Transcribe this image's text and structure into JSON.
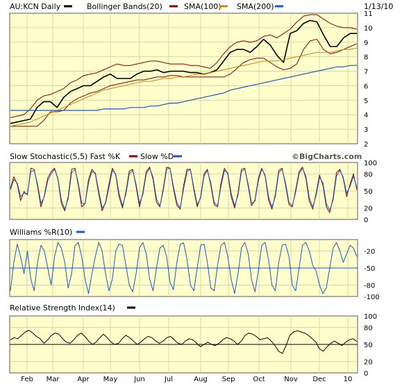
{
  "header": {
    "symbol_label": "AU:KCN Daily",
    "bollinger_label": "Bollinger Bands(20)",
    "sma100_label": "SMA(100)",
    "sma200_label": "SMA(200)",
    "date": "1/13/10"
  },
  "watermark": "©BigCharts.com",
  "colors": {
    "background": "#ffffcc",
    "panel_border": "#5a5a5a",
    "grid": "#d4d4a8",
    "price": "#000000",
    "bollinger": "#8b0000",
    "sma100": "#cc8800",
    "sma200": "#1a56c9",
    "stoch_fast": "#8b0000",
    "stoch_slow": "#1a56c9",
    "williams": "#1a56c9",
    "rsi": "#000000"
  },
  "chart_data": [
    {
      "type": "line",
      "name": "price",
      "title": "AU:KCN Daily",
      "ylim": [
        2,
        11
      ],
      "yticks": [
        2,
        3,
        4,
        5,
        6,
        7,
        8,
        9,
        10,
        11
      ],
      "months": [
        "Feb",
        "Mar",
        "Apr",
        "May",
        "Jun",
        "Jul",
        "Aug",
        "Sep",
        "Oct",
        "Nov",
        "Dec",
        "10"
      ],
      "series": [
        {
          "name": "AU:KCN Daily",
          "values": [
            3.4,
            3.5,
            3.6,
            3.7,
            4.5,
            4.9,
            4.9,
            4.5,
            5.2,
            5.6,
            5.8,
            6.0,
            6.0,
            6.3,
            6.6,
            6.8,
            6.5,
            6.5,
            6.5,
            6.8,
            7.0,
            7.0,
            7.1,
            6.9,
            7.0,
            7.0,
            7.0,
            6.9,
            6.9,
            6.8,
            6.9,
            7.1,
            7.7,
            8.3,
            8.5,
            8.5,
            8.3,
            8.7,
            9.2,
            8.8,
            8.1,
            7.6,
            9.6,
            9.8,
            10.3,
            10.5,
            10.4,
            9.5,
            8.7,
            8.7,
            9.3,
            9.6,
            9.6
          ]
        },
        {
          "name": "Bollinger upper",
          "values": [
            3.8,
            3.9,
            4.0,
            4.4,
            5.0,
            5.3,
            5.4,
            5.6,
            5.8,
            6.2,
            6.4,
            6.7,
            6.8,
            6.9,
            7.1,
            7.3,
            7.5,
            7.4,
            7.4,
            7.5,
            7.6,
            7.7,
            7.7,
            7.6,
            7.5,
            7.5,
            7.5,
            7.4,
            7.4,
            7.3,
            7.2,
            7.6,
            8.2,
            8.7,
            9.0,
            9.1,
            9.0,
            9.1,
            9.4,
            9.5,
            9.3,
            9.6,
            9.9,
            10.4,
            10.8,
            10.9,
            10.9,
            10.6,
            10.3,
            10.1,
            10.0,
            10.0,
            9.9
          ]
        },
        {
          "name": "Bollinger lower",
          "values": [
            3.2,
            3.2,
            3.2,
            3.2,
            3.2,
            3.6,
            4.2,
            4.2,
            4.3,
            4.8,
            5.1,
            5.3,
            5.5,
            5.6,
            5.8,
            6.0,
            6.1,
            6.2,
            6.3,
            6.4,
            6.4,
            6.5,
            6.6,
            6.6,
            6.7,
            6.7,
            6.6,
            6.6,
            6.6,
            6.6,
            6.6,
            6.6,
            6.6,
            6.8,
            7.2,
            7.6,
            7.8,
            7.9,
            7.9,
            7.6,
            7.3,
            7.1,
            7.2,
            7.5,
            8.5,
            9.1,
            9.2,
            8.5,
            8.2,
            8.3,
            8.5,
            8.7,
            8.9
          ]
        },
        {
          "name": "SMA(100)",
          "values": [
            3.2,
            3.3,
            3.4,
            3.5,
            3.7,
            3.9,
            4.1,
            4.3,
            4.5,
            4.7,
            4.9,
            5.1,
            5.3,
            5.5,
            5.7,
            5.8,
            5.9,
            6.0,
            6.1,
            6.2,
            6.3,
            6.3,
            6.4,
            6.5,
            6.5,
            6.6,
            6.6,
            6.7,
            6.8,
            6.8,
            6.9,
            7.0,
            7.1,
            7.2,
            7.3,
            7.4,
            7.5,
            7.6,
            7.7,
            7.7,
            7.7,
            7.8,
            7.9,
            8.0,
            8.1,
            8.2,
            8.3,
            8.3,
            8.3,
            8.4,
            8.5,
            8.5,
            8.6
          ]
        },
        {
          "name": "SMA(200)",
          "values": [
            4.3,
            4.3,
            4.3,
            4.3,
            4.3,
            4.3,
            4.3,
            4.3,
            4.3,
            4.3,
            4.3,
            4.3,
            4.3,
            4.3,
            4.4,
            4.4,
            4.4,
            4.4,
            4.5,
            4.5,
            4.5,
            4.6,
            4.6,
            4.7,
            4.8,
            4.8,
            4.9,
            5.0,
            5.1,
            5.2,
            5.3,
            5.4,
            5.5,
            5.7,
            5.8,
            5.9,
            6.0,
            6.1,
            6.2,
            6.3,
            6.4,
            6.5,
            6.6,
            6.7,
            6.8,
            6.9,
            7.0,
            7.1,
            7.2,
            7.3,
            7.3,
            7.4,
            7.4
          ]
        }
      ]
    },
    {
      "type": "line",
      "name": "stochastic",
      "title": "Slow Stochastic(5,5) Fast %K",
      "slow_label": "Slow %D",
      "ylim": [
        0,
        100
      ],
      "yticks": [
        0,
        20,
        50,
        80,
        100
      ],
      "series": [
        {
          "name": "Fast %K",
          "values": [
            55,
            75,
            62,
            33,
            49,
            43,
            90,
            88,
            58,
            22,
            42,
            73,
            84,
            90,
            70,
            28,
            15,
            40,
            88,
            90,
            60,
            22,
            28,
            70,
            88,
            80,
            45,
            15,
            30,
            62,
            90,
            78,
            40,
            20,
            48,
            85,
            88,
            58,
            22,
            48,
            84,
            92,
            70,
            30,
            22,
            54,
            92,
            90,
            54,
            25,
            18,
            60,
            88,
            88,
            52,
            22,
            40,
            80,
            88,
            60,
            26,
            22,
            64,
            90,
            80,
            40,
            20,
            46,
            88,
            90,
            58,
            24,
            34,
            72,
            90,
            76,
            34,
            18,
            44,
            86,
            90,
            60,
            26,
            22,
            52,
            84,
            92,
            72,
            32,
            18,
            46,
            78,
            60,
            22,
            12,
            38,
            82,
            88,
            72,
            40,
            62,
            80,
            52
          ]
        },
        {
          "name": "Slow %D",
          "values": [
            52,
            70,
            64,
            40,
            46,
            45,
            84,
            86,
            62,
            28,
            40,
            68,
            80,
            88,
            72,
            34,
            18,
            36,
            82,
            88,
            64,
            28,
            28,
            64,
            84,
            82,
            50,
            20,
            28,
            56,
            86,
            80,
            46,
            24,
            44,
            80,
            86,
            62,
            28,
            44,
            80,
            90,
            74,
            36,
            24,
            50,
            88,
            90,
            58,
            30,
            20,
            54,
            84,
            88,
            56,
            26,
            38,
            76,
            86,
            64,
            30,
            24,
            58,
            86,
            82,
            46,
            24,
            42,
            84,
            88,
            62,
            28,
            32,
            68,
            88,
            78,
            40,
            22,
            40,
            82,
            88,
            64,
            30,
            24,
            48,
            80,
            90,
            76,
            38,
            22,
            42,
            74,
            64,
            28,
            16,
            34,
            76,
            86,
            74,
            46,
            58,
            76,
            56
          ]
        }
      ]
    },
    {
      "type": "line",
      "name": "williams",
      "title": "Williams %R(10)",
      "ylim": [
        -100,
        0
      ],
      "yticks": [
        -20,
        -50,
        -80,
        -100
      ],
      "series": [
        {
          "name": "Williams %R(10)",
          "values": [
            -90,
            -40,
            -8,
            -30,
            -60,
            -20,
            -70,
            -90,
            -40,
            -10,
            -20,
            -50,
            -80,
            -30,
            -5,
            -15,
            -40,
            -85,
            -60,
            -10,
            -5,
            -30,
            -70,
            -95,
            -60,
            -30,
            -5,
            -20,
            -60,
            -90,
            -70,
            -20,
            -8,
            -10,
            -45,
            -80,
            -92,
            -60,
            -15,
            -5,
            -25,
            -70,
            -90,
            -50,
            -15,
            -10,
            -30,
            -75,
            -88,
            -40,
            -8,
            -6,
            -35,
            -80,
            -90,
            -50,
            -10,
            -8,
            -40,
            -85,
            -90,
            -45,
            -10,
            -5,
            -30,
            -70,
            -95,
            -60,
            -15,
            -5,
            -25,
            -70,
            -92,
            -55,
            -10,
            -5,
            -35,
            -80,
            -90,
            -40,
            -10,
            -8,
            -30,
            -80,
            -90,
            -50,
            -10,
            -5,
            -20,
            -45,
            -55,
            -80,
            -95,
            -85,
            -50,
            -15,
            -5,
            -20,
            -40,
            -25,
            -10,
            -15,
            -30
          ]
        }
      ]
    },
    {
      "type": "line",
      "name": "rsi",
      "title": "Relative Strength Index(14)",
      "ylim": [
        0,
        100
      ],
      "yticks": [
        0,
        20,
        50,
        80,
        100
      ],
      "series": [
        {
          "name": "Relative Strength Index(14)",
          "values": [
            58,
            62,
            60,
            66,
            72,
            75,
            70,
            64,
            60,
            52,
            58,
            66,
            70,
            68,
            60,
            54,
            52,
            58,
            66,
            70,
            64,
            56,
            50,
            54,
            62,
            68,
            62,
            54,
            50,
            52,
            60,
            66,
            62,
            56,
            50,
            54,
            60,
            64,
            62,
            56,
            52,
            56,
            62,
            64,
            58,
            52,
            50,
            56,
            60,
            58,
            52,
            46,
            50,
            54,
            50,
            48,
            52,
            58,
            62,
            60,
            56,
            50,
            56,
            66,
            70,
            68,
            64,
            58,
            60,
            62,
            56,
            48,
            38,
            34,
            48,
            66,
            72,
            74,
            72,
            70,
            66,
            60,
            54,
            42,
            38,
            46,
            52,
            56,
            52,
            48,
            54,
            58,
            60,
            55
          ]
        }
      ],
      "months": [
        "Feb",
        "Mar",
        "Apr",
        "May",
        "Jun",
        "Jul",
        "Aug",
        "Sep",
        "Oct",
        "Nov",
        "Dec",
        "10"
      ]
    }
  ]
}
